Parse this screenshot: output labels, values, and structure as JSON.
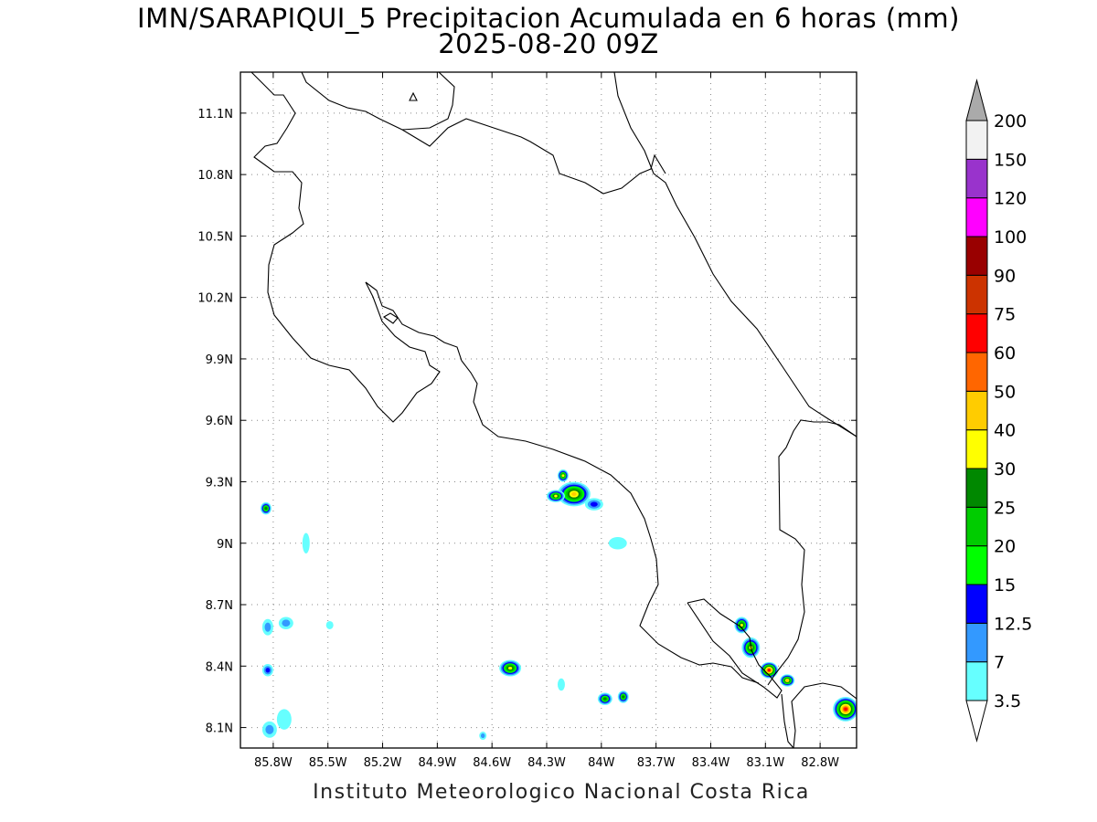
{
  "title": {
    "line1": "IMN/SARAPIQUI_5 Precipitacion Acumulada en 6 horas (mm)",
    "line2": "2025-08-20 09Z"
  },
  "credit": "Instituto Meteorologico Nacional Costa Rica",
  "map": {
    "lon_range": [
      -85.98,
      -82.6
    ],
    "lat_range": [
      8.0,
      11.3
    ],
    "lon_ticks": [
      {
        "value": -85.8,
        "label": "85.8W"
      },
      {
        "value": -85.5,
        "label": "85.5W"
      },
      {
        "value": -85.2,
        "label": "85.2W"
      },
      {
        "value": -84.9,
        "label": "84.9W"
      },
      {
        "value": -84.6,
        "label": "84.6W"
      },
      {
        "value": -84.3,
        "label": "84.3W"
      },
      {
        "value": -84.0,
        "label": "84W"
      },
      {
        "value": -83.7,
        "label": "83.7W"
      },
      {
        "value": -83.4,
        "label": "83.4W"
      },
      {
        "value": -83.1,
        "label": "83.1W"
      },
      {
        "value": -82.8,
        "label": "82.8W"
      }
    ],
    "lat_ticks": [
      {
        "value": 8.1,
        "label": "8.1N"
      },
      {
        "value": 8.4,
        "label": "8.4N"
      },
      {
        "value": 8.7,
        "label": "8.7N"
      },
      {
        "value": 9.0,
        "label": "9N"
      },
      {
        "value": 9.3,
        "label": "9.3N"
      },
      {
        "value": 9.6,
        "label": "9.6N"
      },
      {
        "value": 9.9,
        "label": "9.9N"
      },
      {
        "value": 10.2,
        "label": "10.2N"
      },
      {
        "value": 10.5,
        "label": "10.5N"
      },
      {
        "value": 10.8,
        "label": "10.8N"
      },
      {
        "value": 11.1,
        "label": "11.1N"
      }
    ],
    "grid": "dotted"
  },
  "colorbar": {
    "levels": [
      "3.5",
      "7",
      "12.5",
      "15",
      "20",
      "25",
      "30",
      "40",
      "50",
      "60",
      "75",
      "90",
      "100",
      "120",
      "150",
      "200"
    ],
    "colors": [
      "#66ffff",
      "#3399ff",
      "#0000ff",
      "#00ff00",
      "#00cc00",
      "#008800",
      "#ffff00",
      "#ffcc00",
      "#ff6600",
      "#ff0000",
      "#cc3300",
      "#990000",
      "#ff00ff",
      "#9933cc",
      "#f2f2f2",
      "#aaaaaa"
    ]
  },
  "precip_cells": [
    {
      "lon": -84.15,
      "lat": 9.24,
      "rx": 0.09,
      "ry": 0.06,
      "peak": "40"
    },
    {
      "lon": -84.25,
      "lat": 9.23,
      "rx": 0.05,
      "ry": 0.03,
      "peak": "30"
    },
    {
      "lon": -84.21,
      "lat": 9.33,
      "rx": 0.03,
      "ry": 0.03,
      "peak": "30"
    },
    {
      "lon": -84.04,
      "lat": 9.19,
      "rx": 0.05,
      "ry": 0.03,
      "peak": "12.5"
    },
    {
      "lon": -83.91,
      "lat": 9.0,
      "rx": 0.05,
      "ry": 0.03,
      "peak": "3.5"
    },
    {
      "lon": -84.5,
      "lat": 8.39,
      "rx": 0.06,
      "ry": 0.04,
      "peak": "30"
    },
    {
      "lon": -83.98,
      "lat": 8.24,
      "rx": 0.04,
      "ry": 0.03,
      "peak": "25"
    },
    {
      "lon": -83.88,
      "lat": 8.25,
      "rx": 0.03,
      "ry": 0.03,
      "peak": "25"
    },
    {
      "lon": -83.23,
      "lat": 8.6,
      "rx": 0.04,
      "ry": 0.04,
      "peak": "30"
    },
    {
      "lon": -83.18,
      "lat": 8.49,
      "rx": 0.05,
      "ry": 0.05,
      "peak": "30"
    },
    {
      "lon": -83.08,
      "lat": 8.38,
      "rx": 0.05,
      "ry": 0.04,
      "peak": "60"
    },
    {
      "lon": -82.98,
      "lat": 8.33,
      "rx": 0.04,
      "ry": 0.03,
      "peak": "40"
    },
    {
      "lon": -82.66,
      "lat": 8.19,
      "rx": 0.07,
      "ry": 0.06,
      "peak": "60"
    },
    {
      "lon": -85.84,
      "lat": 9.17,
      "rx": 0.03,
      "ry": 0.03,
      "peak": "25"
    },
    {
      "lon": -85.83,
      "lat": 8.59,
      "rx": 0.03,
      "ry": 0.04,
      "peak": "7"
    },
    {
      "lon": -85.73,
      "lat": 8.61,
      "rx": 0.04,
      "ry": 0.03,
      "peak": "7"
    },
    {
      "lon": -85.83,
      "lat": 8.38,
      "rx": 0.03,
      "ry": 0.03,
      "peak": "12.5"
    },
    {
      "lon": -85.82,
      "lat": 8.09,
      "rx": 0.04,
      "ry": 0.04,
      "peak": "7"
    },
    {
      "lon": -85.74,
      "lat": 8.14,
      "rx": 0.04,
      "ry": 0.05,
      "peak": "3.5"
    },
    {
      "lon": -85.62,
      "lat": 9.0,
      "rx": 0.02,
      "ry": 0.05,
      "peak": "3.5"
    },
    {
      "lon": -84.65,
      "lat": 8.06,
      "rx": 0.02,
      "ry": 0.02,
      "peak": "7"
    },
    {
      "lon": -84.22,
      "lat": 8.31,
      "rx": 0.02,
      "ry": 0.03,
      "peak": "3.5"
    },
    {
      "lon": -85.49,
      "lat": 8.6,
      "rx": 0.02,
      "ry": 0.02,
      "peak": "3.5"
    }
  ]
}
